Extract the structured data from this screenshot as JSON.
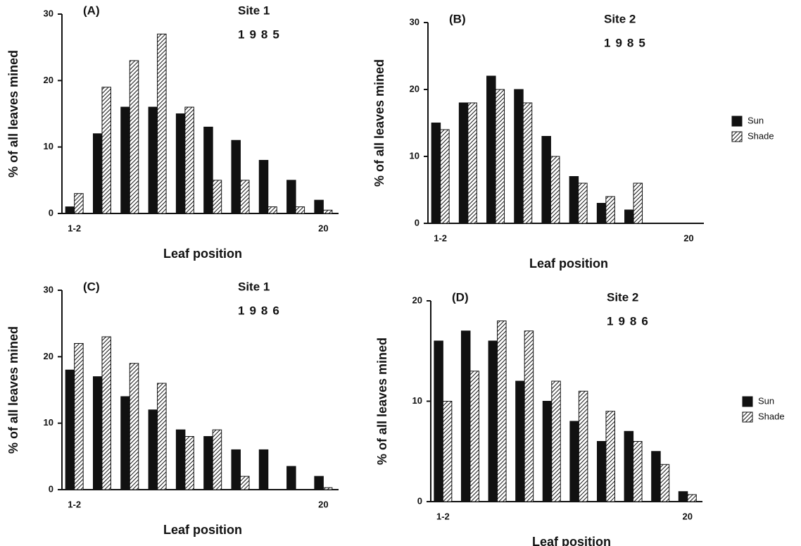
{
  "chart_data": [
    {
      "type": "bar",
      "label": "(A)",
      "title": "Site 1",
      "subtitle": "1985",
      "ylabel": "% of all leaves mined",
      "xlabel": "Leaf position",
      "categories": [
        "1-2",
        null,
        null,
        null,
        null,
        null,
        null,
        null,
        null,
        "20"
      ],
      "series": [
        {
          "name": "Sun",
          "color": "#111111",
          "pattern": "solid",
          "values": [
            1,
            12,
            16,
            16,
            15,
            13,
            11,
            8,
            5,
            2
          ]
        },
        {
          "name": "Shade",
          "color": "#111111",
          "pattern": "hatch",
          "values": [
            3,
            19,
            23,
            27,
            16,
            5,
            5,
            1,
            1,
            0.5
          ]
        }
      ],
      "ylim": [
        0,
        30
      ],
      "yticks": [
        0,
        10,
        20,
        30
      ],
      "legend": false
    },
    {
      "type": "bar",
      "label": "(B)",
      "title": "Site 2",
      "subtitle": "1985",
      "ylabel": "% of all leaves mined",
      "xlabel": "Leaf position",
      "categories": [
        "1-2",
        null,
        null,
        null,
        null,
        null,
        null,
        null,
        null,
        "20"
      ],
      "series": [
        {
          "name": "Sun",
          "color": "#111111",
          "pattern": "solid",
          "values": [
            15,
            18,
            22,
            20,
            13,
            7,
            3,
            2,
            null,
            null
          ]
        },
        {
          "name": "Shade",
          "color": "#111111",
          "pattern": "hatch",
          "values": [
            14,
            18,
            20,
            18,
            10,
            6,
            4,
            6,
            null,
            null
          ]
        }
      ],
      "ylim": [
        0,
        30
      ],
      "yticks": [
        0,
        10,
        20,
        30
      ],
      "legend": true
    },
    {
      "type": "bar",
      "label": "(C)",
      "title": "Site 1",
      "subtitle": "1986",
      "ylabel": "% of all leaves mined",
      "xlabel": "Leaf position",
      "categories": [
        "1-2",
        null,
        null,
        null,
        null,
        null,
        null,
        null,
        null,
        "20"
      ],
      "series": [
        {
          "name": "Sun",
          "color": "#111111",
          "pattern": "solid",
          "values": [
            18,
            17,
            14,
            12,
            9,
            8,
            6,
            6,
            3.5,
            2
          ]
        },
        {
          "name": "Shade",
          "color": "#111111",
          "pattern": "hatch",
          "values": [
            22,
            23,
            19,
            16,
            8,
            9,
            2,
            0,
            0,
            0.3
          ]
        }
      ],
      "ylim": [
        0,
        30
      ],
      "yticks": [
        0,
        10,
        20,
        30
      ],
      "legend": false
    },
    {
      "type": "bar",
      "label": "(D)",
      "title": "Site 2",
      "subtitle": "1986",
      "ylabel": "% of all leaves mined",
      "xlabel": "Leaf position",
      "categories": [
        "1-2",
        null,
        null,
        null,
        null,
        null,
        null,
        null,
        null,
        "20"
      ],
      "series": [
        {
          "name": "Sun",
          "color": "#111111",
          "pattern": "solid",
          "values": [
            16,
            17,
            16,
            12,
            10,
            8,
            6,
            7,
            5,
            1
          ]
        },
        {
          "name": "Shade",
          "color": "#111111",
          "pattern": "hatch",
          "values": [
            10,
            13,
            18,
            17,
            12,
            11,
            9,
            6,
            3.7,
            0.7
          ]
        }
      ],
      "ylim": [
        0,
        20
      ],
      "yticks": [
        0,
        10,
        20
      ],
      "legend": true
    }
  ]
}
